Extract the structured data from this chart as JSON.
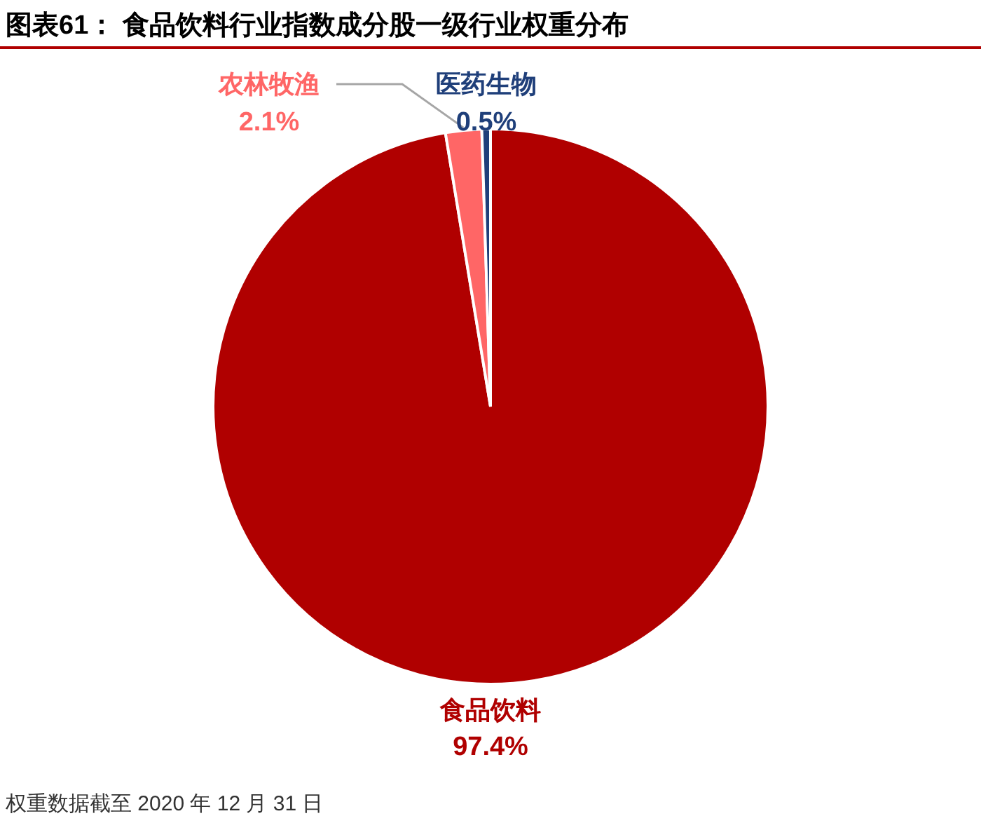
{
  "chart_data": {
    "type": "pie",
    "title": "图表61：  食品饮料行业指数成分股一级行业权重分布",
    "categories": [
      "食品饮料",
      "农林牧渔",
      "医药生物"
    ],
    "values": [
      97.4,
      2.1,
      0.5
    ],
    "colors": [
      "#b00000",
      "#ff6666",
      "#1f3f7a"
    ],
    "value_labels": [
      "97.4%",
      "2.1%",
      "0.5%"
    ],
    "annotations": [
      "权重数据截至 2020 年 12 月 31 日"
    ]
  }
}
